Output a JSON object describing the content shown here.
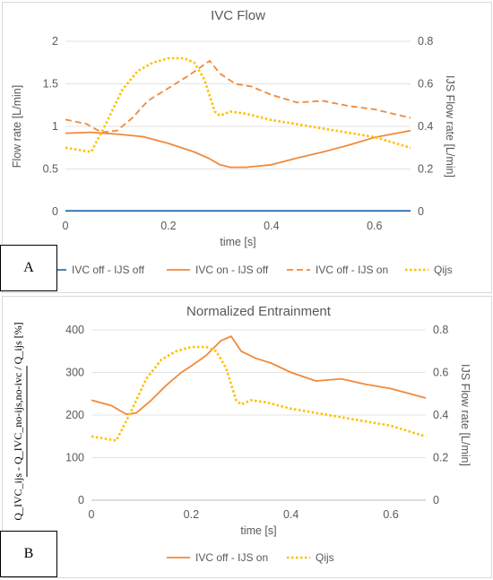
{
  "chart_data": [
    {
      "panel_letter": "A",
      "type": "line",
      "title": "IVC  Flow",
      "xlabel": "time [s]",
      "ylabel": "Flow rate [L/min]",
      "y2label": "IJS Flow rate [L/min]",
      "xlim": [
        0,
        0.67
      ],
      "ylim": [
        0,
        2
      ],
      "y2lim": [
        0,
        0.8
      ],
      "xticks": [
        "0",
        "0.2",
        "0.4",
        "0.6"
      ],
      "xtick_values": [
        0,
        0.2,
        0.4,
        0.6
      ],
      "yticks": [
        "0",
        "0.5",
        "1",
        "1.5",
        "2"
      ],
      "ytick_values": [
        0,
        0.5,
        1,
        1.5,
        2
      ],
      "y2ticks": [
        "0",
        "0.2",
        "0.4",
        "0.6",
        "0.8"
      ],
      "y2tick_values": [
        0,
        0.2,
        0.4,
        0.6,
        0.8
      ],
      "grid": "horizontal",
      "legend_position": "bottom",
      "series": [
        {
          "name": "IVC off - IJS off",
          "axis": "left",
          "color": "#2e75b6",
          "dash": "solid",
          "x": [
            0,
            0.1,
            0.2,
            0.3,
            0.4,
            0.5,
            0.6,
            0.67
          ],
          "y": [
            0.01,
            0.01,
            0.01,
            0.01,
            0.01,
            0.01,
            0.01,
            0.01
          ]
        },
        {
          "name": "IVC on - IJS off",
          "axis": "left",
          "color": "#f08a3c",
          "dash": "solid",
          "x": [
            0,
            0.05,
            0.1,
            0.15,
            0.2,
            0.25,
            0.28,
            0.3,
            0.32,
            0.35,
            0.4,
            0.45,
            0.5,
            0.55,
            0.6,
            0.67
          ],
          "y": [
            0.92,
            0.93,
            0.91,
            0.88,
            0.8,
            0.7,
            0.62,
            0.55,
            0.52,
            0.52,
            0.55,
            0.63,
            0.7,
            0.78,
            0.87,
            0.95
          ]
        },
        {
          "name": "IVC off - IJS on",
          "axis": "left",
          "color": "#f08a3c",
          "dash": "dashed",
          "x": [
            0,
            0.04,
            0.07,
            0.1,
            0.13,
            0.16,
            0.2,
            0.24,
            0.28,
            0.3,
            0.33,
            0.36,
            0.4,
            0.45,
            0.5,
            0.55,
            0.6,
            0.67
          ],
          "y": [
            1.08,
            1.03,
            0.93,
            0.95,
            1.1,
            1.3,
            1.45,
            1.6,
            1.77,
            1.62,
            1.5,
            1.47,
            1.37,
            1.28,
            1.3,
            1.24,
            1.2,
            1.1
          ]
        },
        {
          "name": "Qijs",
          "axis": "right",
          "color": "#ffc000",
          "dash": "dotted",
          "x": [
            0,
            0.05,
            0.08,
            0.11,
            0.14,
            0.17,
            0.2,
            0.23,
            0.25,
            0.27,
            0.29,
            0.3,
            0.32,
            0.35,
            0.4,
            0.45,
            0.5,
            0.55,
            0.6,
            0.67
          ],
          "y": [
            0.3,
            0.28,
            0.42,
            0.57,
            0.66,
            0.7,
            0.72,
            0.72,
            0.7,
            0.62,
            0.47,
            0.45,
            0.47,
            0.46,
            0.43,
            0.41,
            0.39,
            0.37,
            0.35,
            0.3
          ]
        }
      ]
    },
    {
      "panel_letter": "B",
      "type": "line",
      "title": "Normalized Entrainment",
      "xlabel": "time [s]",
      "ylabel": "Q_IVC_ijs - Q_IVC_no-ijs,no-ivc / Q_ijs [%]",
      "y2label": "IJS Flow rate [L/min]",
      "xlim": [
        0,
        0.67
      ],
      "ylim": [
        0,
        400
      ],
      "y2lim": [
        0,
        0.8
      ],
      "xticks": [
        "0",
        "0.2",
        "0.4",
        "0.6"
      ],
      "xtick_values": [
        0,
        0.2,
        0.4,
        0.6
      ],
      "yticks": [
        "0",
        "100",
        "200",
        "300",
        "400"
      ],
      "ytick_values": [
        0,
        100,
        200,
        300,
        400
      ],
      "y2ticks": [
        "0",
        "0.2",
        "0.4",
        "0.6",
        "0.8"
      ],
      "y2tick_values": [
        0,
        0.2,
        0.4,
        0.6,
        0.8
      ],
      "grid": "horizontal",
      "legend_position": "bottom",
      "series": [
        {
          "name": "IVC off - IJS on",
          "axis": "left",
          "color": "#f08a3c",
          "dash": "solid",
          "x": [
            0,
            0.04,
            0.07,
            0.09,
            0.12,
            0.15,
            0.18,
            0.2,
            0.23,
            0.26,
            0.28,
            0.3,
            0.33,
            0.36,
            0.4,
            0.45,
            0.5,
            0.55,
            0.6,
            0.67
          ],
          "y": [
            235,
            222,
            202,
            205,
            235,
            270,
            300,
            315,
            340,
            375,
            385,
            350,
            333,
            322,
            300,
            280,
            285,
            272,
            262,
            240
          ]
        },
        {
          "name": "Qijs",
          "axis": "right",
          "color": "#ffc000",
          "dash": "dotted",
          "x": [
            0,
            0.05,
            0.08,
            0.11,
            0.14,
            0.17,
            0.2,
            0.23,
            0.25,
            0.27,
            0.29,
            0.3,
            0.32,
            0.35,
            0.4,
            0.45,
            0.5,
            0.55,
            0.6,
            0.67
          ],
          "y": [
            0.3,
            0.28,
            0.42,
            0.57,
            0.66,
            0.7,
            0.72,
            0.72,
            0.7,
            0.62,
            0.47,
            0.45,
            0.47,
            0.46,
            0.43,
            0.41,
            0.39,
            0.37,
            0.35,
            0.3
          ]
        }
      ]
    }
  ]
}
